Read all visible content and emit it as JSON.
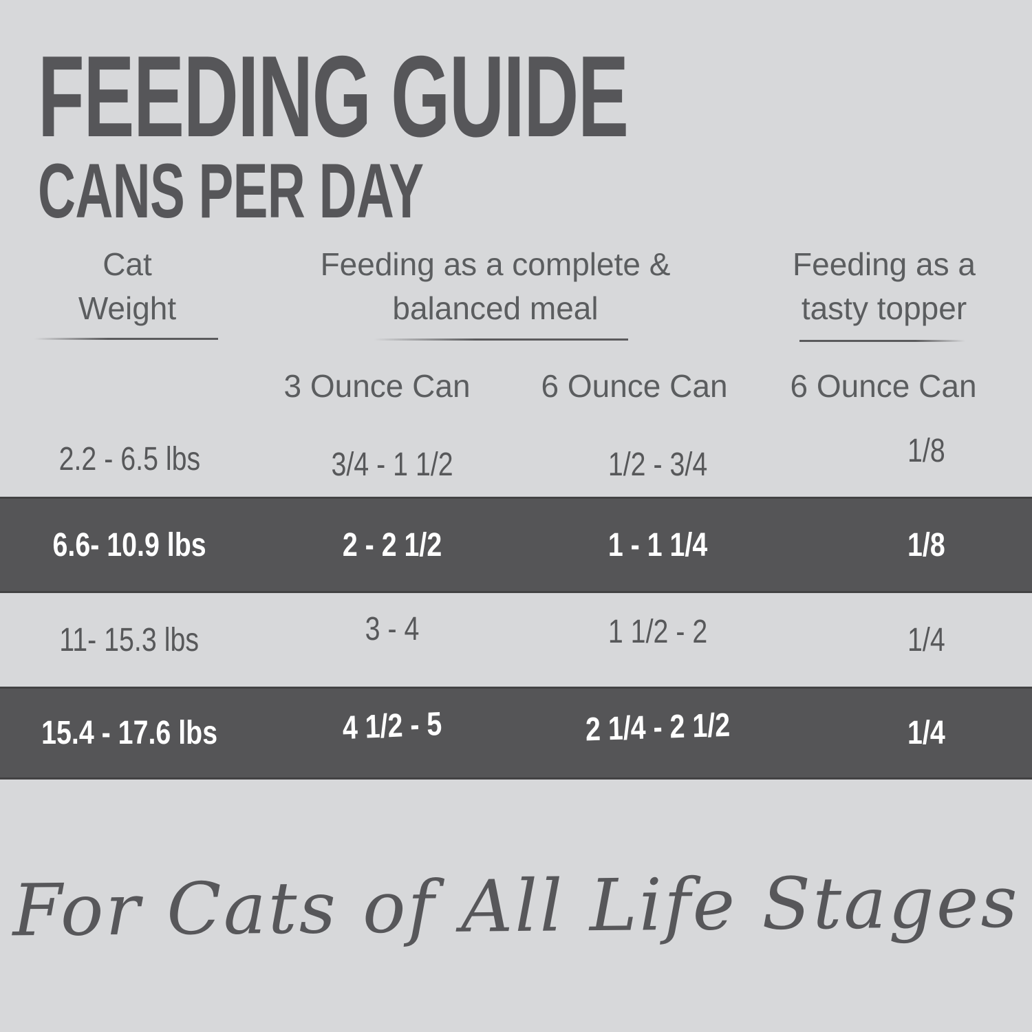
{
  "colors": {
    "background": "#d7d8da",
    "highlight_band": "#555557",
    "title_text": "#565659",
    "header_text": "#5b5d5f",
    "band_text": "#ffffff"
  },
  "header": {
    "title": "FEEDING GUIDE",
    "subtitle": "CANS PER DAY"
  },
  "table": {
    "column_groups": [
      {
        "label_lines": [
          "Cat",
          "Weight"
        ]
      },
      {
        "label_lines": [
          "Feeding as a complete &",
          "balanced meal"
        ]
      },
      {
        "label_lines": [
          "Feeding as a",
          "tasty topper"
        ]
      }
    ],
    "sub_headers": [
      "3 Ounce Can",
      "6 Ounce Can",
      "6 Ounce Can"
    ],
    "rows": [
      {
        "weight": "2.2 - 6.5 lbs",
        "complete_3oz": "3/4 - 1 1/2",
        "complete_6oz": "1/2 - 3/4",
        "topper_6oz": "1/8",
        "highlighted": false
      },
      {
        "weight": "6.6- 10.9 lbs",
        "complete_3oz": "2 - 2 1/2",
        "complete_6oz": "1 - 1 1/4",
        "topper_6oz": "1/8",
        "highlighted": true
      },
      {
        "weight": "11- 15.3 lbs",
        "complete_3oz": "3 - 4",
        "complete_6oz": "1 1/2 - 2",
        "topper_6oz": "1/4",
        "highlighted": false
      },
      {
        "weight": "15.4 - 17.6 lbs",
        "complete_3oz": "4 1/2 - 5",
        "complete_6oz": "2 1/4 - 2 1/2",
        "topper_6oz": "1/4",
        "highlighted": true
      }
    ]
  },
  "footer": {
    "tagline": "For Cats of All Life Stages"
  }
}
